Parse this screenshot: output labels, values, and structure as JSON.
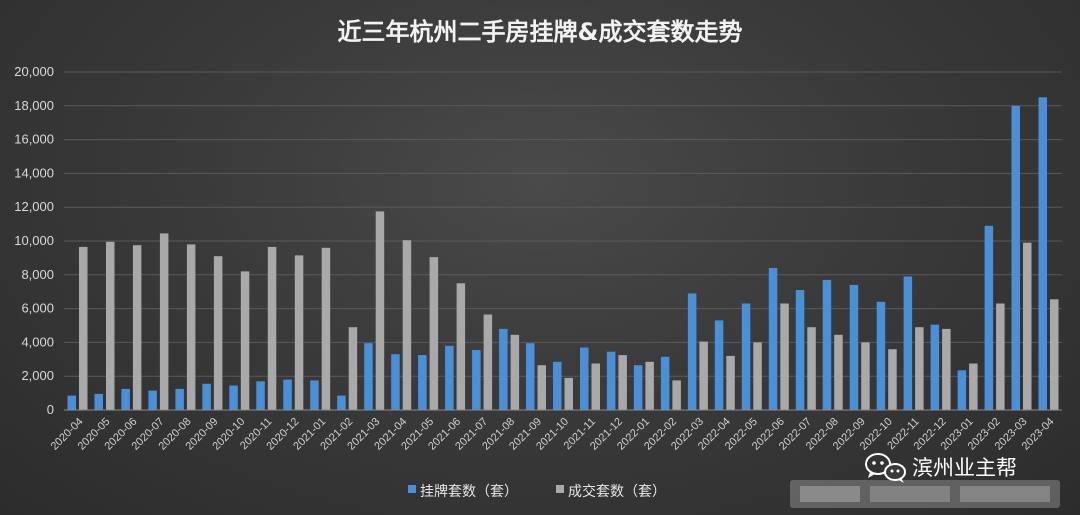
{
  "chart_data": {
    "type": "bar",
    "title": "近三年杭州二手房挂牌&成交套数走势",
    "xlabel": "",
    "ylabel": "",
    "ylim": [
      0,
      20000
    ],
    "yticks": [
      0,
      2000,
      4000,
      6000,
      8000,
      10000,
      12000,
      14000,
      16000,
      18000,
      20000
    ],
    "ytick_labels": [
      "0",
      "2,000",
      "4,000",
      "6,000",
      "8,000",
      "10,000",
      "12,000",
      "14,000",
      "16,000",
      "18,000",
      "20,000"
    ],
    "grid": true,
    "legend_position": "bottom",
    "categories": [
      "2020-04",
      "2020-05",
      "2020-06",
      "2020-07",
      "2020-08",
      "2020-09",
      "2020-10",
      "2020-11",
      "2020-12",
      "2021-01",
      "2021-02",
      "2021-03",
      "2021-04",
      "2021-05",
      "2021-06",
      "2021-07",
      "2021-08",
      "2021-09",
      "2021-10",
      "2021-11",
      "2021-12",
      "2022-01",
      "2022-02",
      "2022-03",
      "2022-04",
      "2022-05",
      "2022-06",
      "2022-07",
      "2022-08",
      "2022-09",
      "2022-10",
      "2022-11",
      "2022-12",
      "2023-01",
      "2023-02",
      "2023-03",
      "2023-04"
    ],
    "series": [
      {
        "name": "挂牌套数（套）",
        "color": "#4a90d9",
        "values": [
          850,
          950,
          1250,
          1150,
          1250,
          1550,
          1450,
          1700,
          1800,
          1750,
          850,
          3950,
          3300,
          3250,
          3800,
          3550,
          4800,
          3950,
          2850,
          3700,
          3450,
          2650,
          3150,
          6900,
          5300,
          6300,
          8400,
          7100,
          7700,
          7400,
          6400,
          7900,
          5050,
          2350,
          10900,
          18000,
          18500
        ]
      },
      {
        "name": "成交套数（套）",
        "color": "#a9a9a9",
        "values": [
          9650,
          9950,
          9750,
          10450,
          9800,
          9100,
          8200,
          9650,
          9150,
          9600,
          4900,
          11750,
          10050,
          9050,
          7500,
          5650,
          4450,
          2650,
          1900,
          2750,
          3250,
          2850,
          1750,
          4050,
          3200,
          4000,
          6300,
          4900,
          4450,
          4000,
          3600,
          4900,
          4800,
          2750,
          6300,
          9900,
          6550
        ]
      }
    ]
  },
  "watermark": {
    "icon": "wechat-icon",
    "text": "滨州业主帮"
  }
}
